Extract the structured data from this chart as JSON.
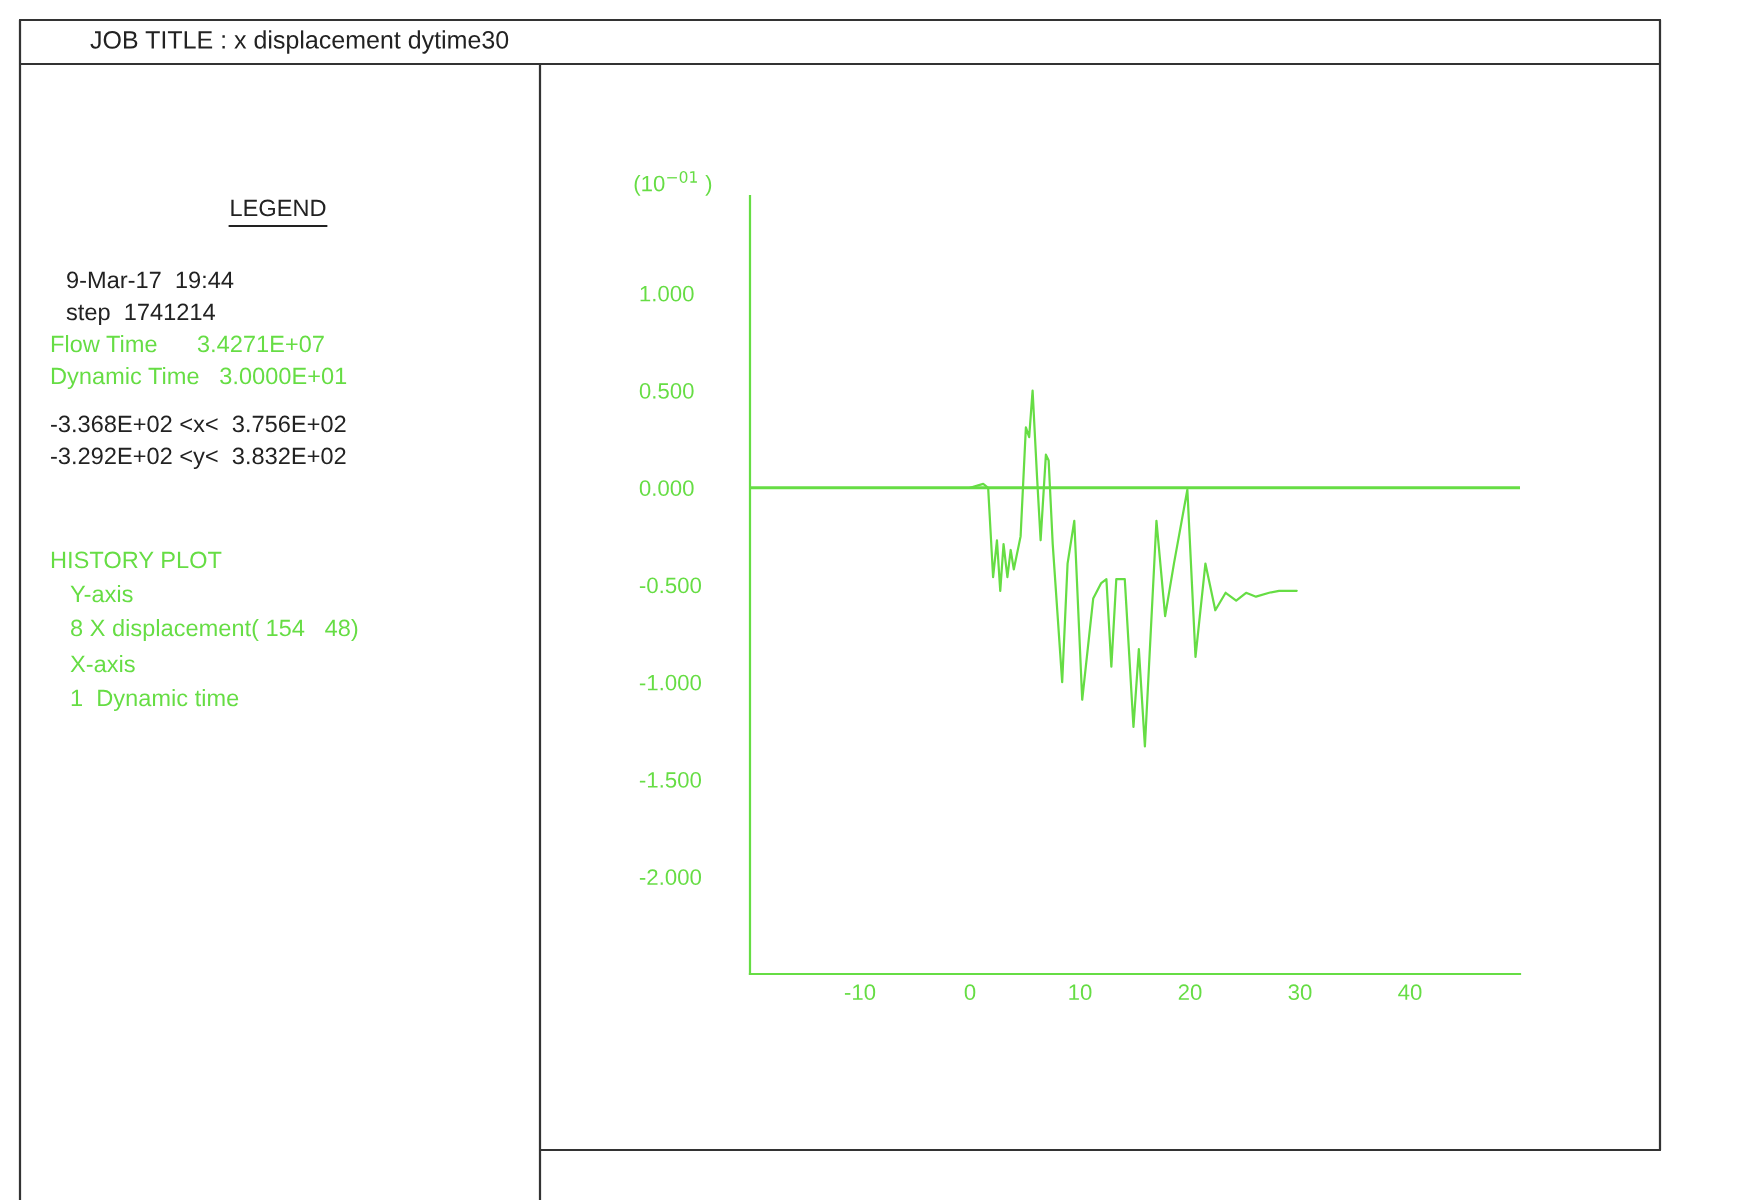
{
  "chart_data": {
    "type": "line",
    "title": "JOB TITLE : x displacement dytime30",
    "ylabel": "(10$^{−01}$ )",
    "annotations": [
      "LEGEND",
      "9-Mar-17  19:44",
      "step  1741214",
      "Flow Time      3.4271E+07",
      "Dynamic Time   3.0000E+01",
      "-3.368E+02 <x<  3.756E+02",
      "-3.292E+02 <y<  3.832E+02",
      "HISTORY PLOT",
      "Y-axis",
      "8 X displacement( 154   48)",
      "X-axis",
      "1  Dynamic time"
    ],
    "x": [
      0,
      1.2,
      1.65,
      2.1,
      2.45,
      2.75,
      3.05,
      3.4,
      3.7,
      3.98,
      4.6,
      5.08,
      5.38,
      5.69,
      6.1,
      6.42,
      6.9,
      7.15,
      7.52,
      8.38,
      8.87,
      9.48,
      10.2,
      11.2,
      11.93,
      12.4,
      12.85,
      13.3,
      14.07,
      14.86,
      15.35,
      15.9,
      16.95,
      17.74,
      18.54,
      19.76,
      20.5,
      21.4,
      22.3,
      23.24,
      24.2,
      25.1,
      26.0,
      27.2,
      28.1,
      29.7
    ],
    "series": [
      {
        "color": "#66dd44",
        "values": [
          0,
          0.02,
          0,
          -0.46,
          -0.27,
          -0.53,
          -0.29,
          -0.46,
          -0.32,
          -0.42,
          -0.25,
          0.31,
          0.26,
          0.5,
          0.05,
          -0.27,
          0.17,
          0.14,
          -0.29,
          -1.0,
          -0.39,
          -0.17,
          -1.09,
          -0.57,
          -0.49,
          -0.47,
          -0.92,
          -0.47,
          -0.47,
          -1.23,
          -0.83,
          -1.33,
          -0.17,
          -0.66,
          -0.39,
          -0.01,
          -0.87,
          -0.39,
          -0.63,
          -0.54,
          -0.58,
          -0.54,
          -0.56,
          -0.54,
          -0.53,
          -0.53
        ]
      }
    ],
    "xlim": [
      -20,
      50
    ],
    "ylim": [
      -2.5,
      1.5
    ],
    "xticks": [
      -10,
      0,
      10,
      20,
      30,
      40
    ],
    "yticks": [
      {
        "value": 1,
        "label": "1.000"
      },
      {
        "value": 0.5,
        "label": "0.500"
      },
      {
        "value": 0,
        "label": "0.000"
      },
      {
        "value": -0.5,
        "label": "-0.500"
      },
      {
        "value": -1,
        "label": "-1.000"
      },
      {
        "value": -1.5,
        "label": "-1.500"
      },
      {
        "value": -2,
        "label": "-2.000"
      }
    ],
    "ref_lines": [
      {
        "axis": "y",
        "value": 0,
        "color": "#66dd44"
      }
    ],
    "grid": false,
    "legend": false,
    "marker": "none",
    "line_style": "solid"
  }
}
